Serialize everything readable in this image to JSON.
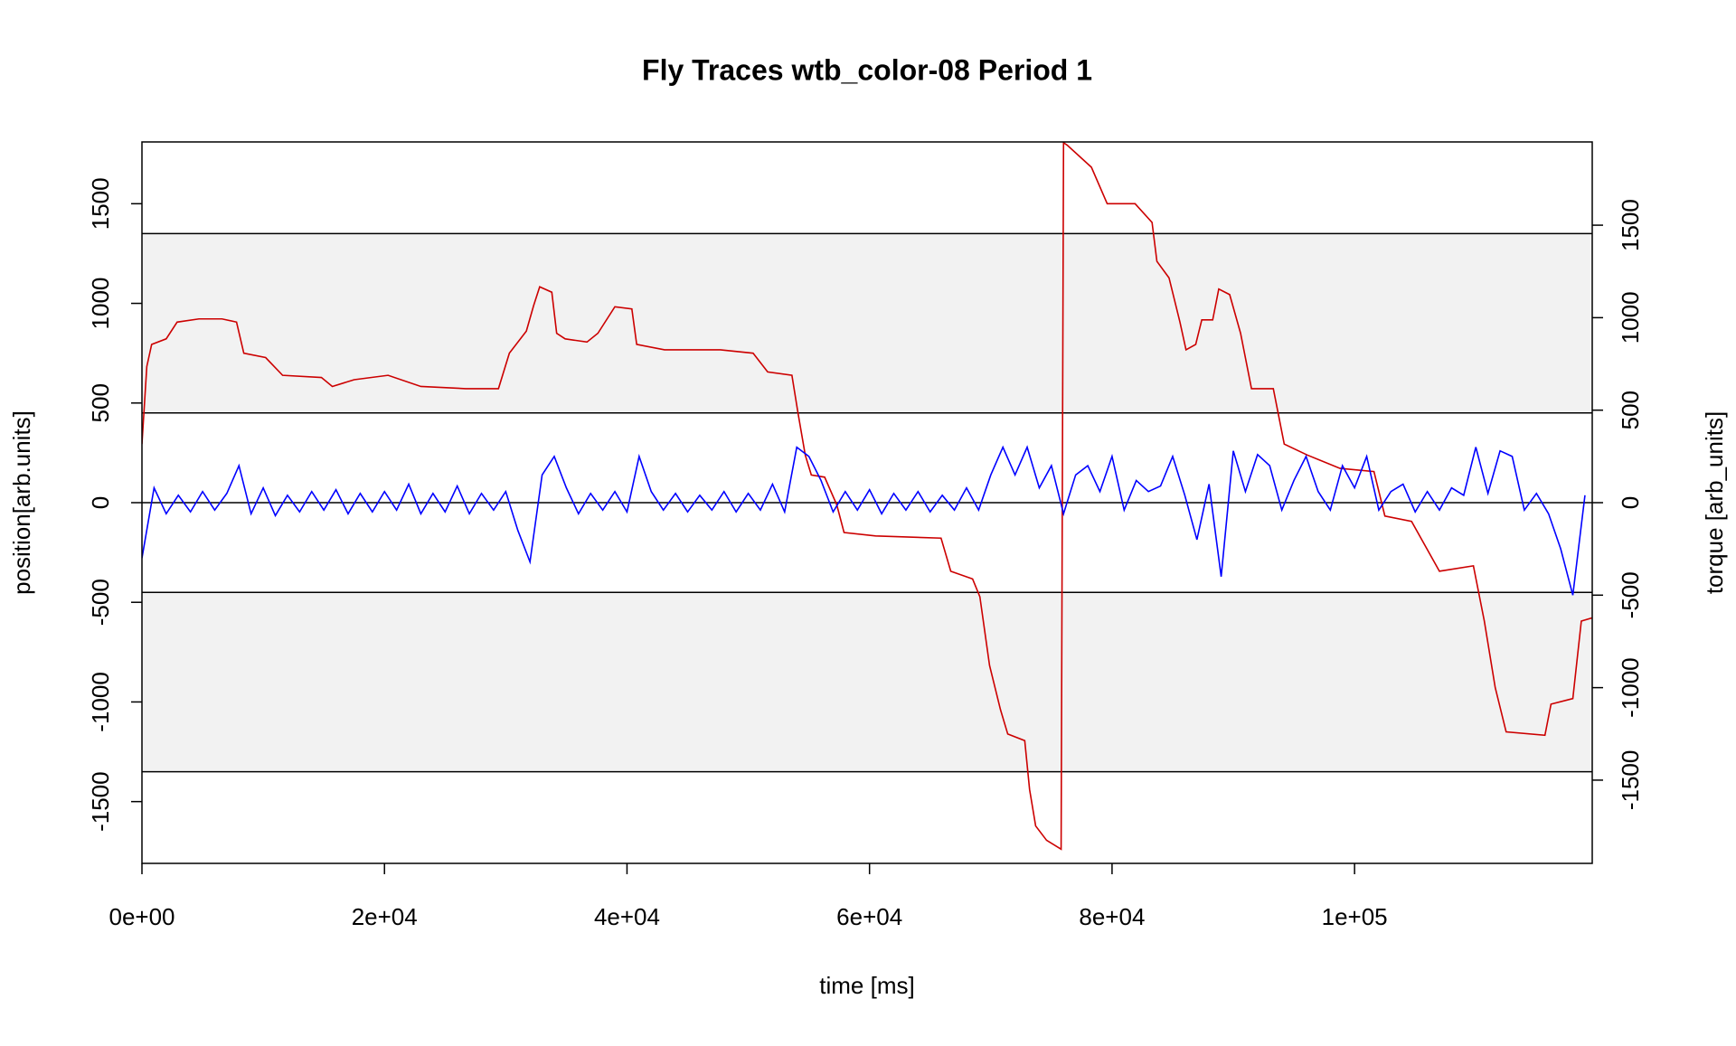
{
  "chart_data": {
    "type": "line",
    "title": "Fly Traces wtb_color-08 Period 1",
    "xlabel": "time [ms]",
    "ylabel": "position[arb.units]",
    "y2label": "torque [arb_units]",
    "xlim": [
      0,
      119600
    ],
    "ylim": [
      -1810,
      1810
    ],
    "y2lim": [
      -1950,
      1950
    ],
    "xticks": [
      {
        "value": 0,
        "label": "0e+00"
      },
      {
        "value": 20000,
        "label": "2e+04"
      },
      {
        "value": 40000,
        "label": "4e+04"
      },
      {
        "value": 60000,
        "label": "6e+04"
      },
      {
        "value": 80000,
        "label": "8e+04"
      },
      {
        "value": 100000,
        "label": "1e+05"
      }
    ],
    "yticks": [
      -1500,
      -1000,
      -500,
      0,
      500,
      1000,
      1500
    ],
    "y2ticks": [
      -1500,
      -1000,
      -500,
      0,
      500,
      1000,
      1500
    ],
    "hlines": [
      -1350,
      -450,
      0,
      450,
      1350
    ],
    "bands": [
      [
        450,
        1350
      ],
      [
        -1350,
        -450
      ]
    ],
    "band_color": "#f2f2f2",
    "series": [
      {
        "color": "#cc0000",
        "x": [
          0,
          400,
          800,
          2000,
          2900,
          4700,
          6600,
          7800,
          8400,
          10200,
          11600,
          14800,
          15700,
          17500,
          20300,
          23000,
          26700,
          29400,
          30300,
          31700,
          32300,
          32800,
          33800,
          34200,
          34900,
          36700,
          37600,
          39000,
          40400,
          40800,
          43100,
          47700,
          50400,
          51600,
          53600,
          54100,
          54700,
          55200,
          56300,
          57300,
          57900,
          60500,
          65900,
          66700,
          68500,
          69100,
          69900,
          70800,
          71400,
          72800,
          73200,
          73700,
          74600,
          75800,
          76000,
          76300,
          78300,
          79600,
          81900,
          83300,
          83700,
          84700,
          85600,
          86100,
          86900,
          87400,
          88300,
          88800,
          89700,
          90600,
          91500,
          93300,
          94200,
          96100,
          98800,
          101600,
          102500,
          104700,
          107000,
          109800,
          110700,
          111600,
          112500,
          115700,
          116200,
          118000,
          118700,
          119600
        ],
        "values": [
          294,
          683,
          794,
          822,
          906,
          922,
          922,
          906,
          750,
          728,
          639,
          628,
          583,
          617,
          639,
          583,
          572,
          572,
          750,
          861,
          989,
          1083,
          1056,
          850,
          822,
          806,
          850,
          983,
          972,
          794,
          767,
          767,
          750,
          656,
          639,
          450,
          239,
          139,
          128,
          -11,
          -150,
          -167,
          -178,
          -344,
          -383,
          -472,
          -817,
          -1039,
          -1161,
          -1194,
          -1439,
          -1622,
          -1694,
          -1739,
          1806,
          1794,
          1683,
          1500,
          1500,
          1406,
          1211,
          1128,
          906,
          767,
          794,
          917,
          917,
          1072,
          1044,
          850,
          572,
          572,
          294,
          239,
          172,
          156,
          -67,
          -94,
          -344,
          -317,
          -594,
          -928,
          -1150,
          -1167,
          -1011,
          -983,
          -594,
          -578
        ]
      },
      {
        "color": "#0000ff",
        "axis": "y2",
        "x": [
          0,
          1000,
          2000,
          3000,
          4000,
          5000,
          6000,
          7000,
          8000,
          9000,
          10000,
          11000,
          12000,
          13000,
          14000,
          15000,
          16000,
          17000,
          18000,
          19000,
          20000,
          21000,
          22000,
          23000,
          24000,
          25000,
          26000,
          27000,
          28000,
          29000,
          30000,
          31000,
          32000,
          33000,
          34000,
          35000,
          36000,
          37000,
          38000,
          39000,
          40000,
          41000,
          42000,
          43000,
          44000,
          45000,
          46000,
          47000,
          48000,
          49000,
          50000,
          51000,
          52000,
          53000,
          54000,
          55000,
          56000,
          57000,
          58000,
          59000,
          60000,
          61000,
          62000,
          63000,
          64000,
          65000,
          66000,
          67000,
          68000,
          69000,
          70000,
          71000,
          72000,
          73000,
          74000,
          75000,
          76000,
          77000,
          78000,
          79000,
          80000,
          81000,
          82000,
          83000,
          84000,
          85000,
          86000,
          87000,
          88000,
          89000,
          90000,
          91000,
          92000,
          93000,
          94000,
          95000,
          96000,
          97000,
          98000,
          99000,
          100000,
          101000,
          102000,
          103000,
          104000,
          105000,
          106000,
          107000,
          108000,
          109000,
          110000,
          111000,
          112000,
          113000,
          114000,
          115000,
          116000,
          117000,
          118000,
          119000
        ],
        "values": [
          -300,
          80,
          -60,
          40,
          -50,
          60,
          -40,
          50,
          200,
          -60,
          80,
          -70,
          40,
          -50,
          60,
          -40,
          70,
          -60,
          50,
          -50,
          60,
          -40,
          100,
          -60,
          50,
          -50,
          90,
          -60,
          50,
          -40,
          60,
          -150,
          -320,
          150,
          250,
          80,
          -60,
          50,
          -40,
          60,
          -50,
          250,
          60,
          -40,
          50,
          -50,
          40,
          -40,
          60,
          -50,
          50,
          -40,
          100,
          -50,
          300,
          250,
          120,
          -50,
          60,
          -40,
          70,
          -60,
          50,
          -40,
          60,
          -50,
          40,
          -40,
          80,
          -40,
          150,
          300,
          150,
          300,
          80,
          200,
          -60,
          150,
          200,
          60,
          250,
          -40,
          120,
          60,
          90,
          250,
          40,
          -200,
          100,
          -400,
          280,
          60,
          260,
          200,
          -40,
          120,
          250,
          60,
          -40,
          200,
          80,
          250,
          -40,
          60,
          100,
          -50,
          60,
          -40,
          80,
          40,
          300,
          50,
          280,
          250,
          -40,
          50,
          -60,
          -250,
          -500,
          40
        ]
      }
    ]
  }
}
